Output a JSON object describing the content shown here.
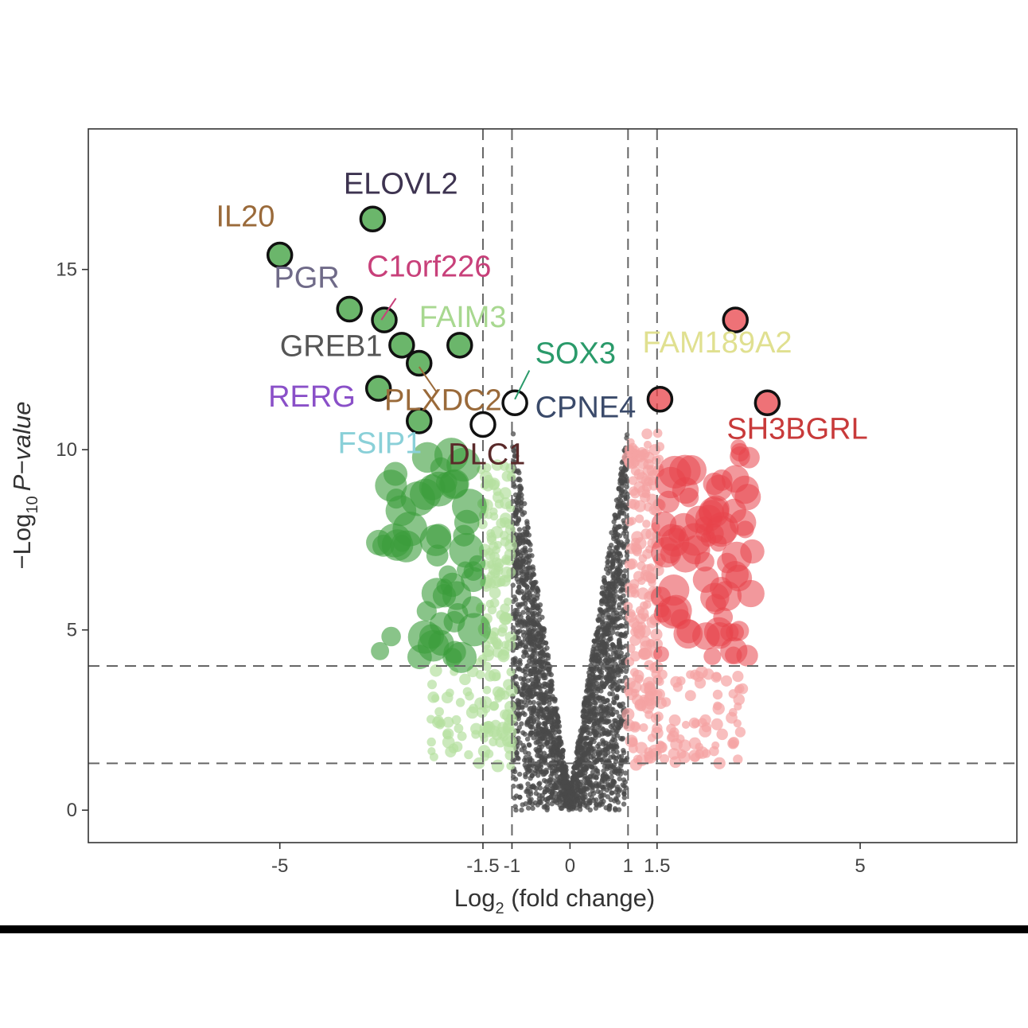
{
  "chart_data": {
    "type": "scatter",
    "title": "",
    "xlabel_prefix": "Log",
    "xlabel_sub": "2",
    "xlabel_suffix": " (fold change)",
    "ylabel_prefix": "−Log",
    "ylabel_sub": "10",
    "ylabel_italic": "P−value",
    "xlim": [
      -8.3,
      7.7
    ],
    "ylim": [
      -0.9,
      18.9
    ],
    "x_ticks": [
      {
        "value": -5,
        "label": "-5"
      },
      {
        "value": -1.5,
        "label": "-1.5"
      },
      {
        "value": -1,
        "label": "-1"
      },
      {
        "value": 0,
        "label": "0"
      },
      {
        "value": 1,
        "label": "1"
      },
      {
        "value": 1.5,
        "label": "1.5"
      },
      {
        "value": 5,
        "label": "5"
      }
    ],
    "y_ticks": [
      {
        "value": 0,
        "label": "0"
      },
      {
        "value": 5,
        "label": "5"
      },
      {
        "value": 10,
        "label": "10"
      },
      {
        "value": 15,
        "label": "15"
      }
    ],
    "grid": false,
    "vlines": [
      -1.5,
      -1,
      1,
      1.5
    ],
    "hlines": [
      1.3,
      4
    ],
    "colors": {
      "down_strong": "#3a9d3a",
      "down_weak": "#b5df9f",
      "up_strong": "#e8434a",
      "up_weak": "#f5a3a3",
      "neutral": "#4a4a4a",
      "threshold_line": "#666666",
      "highlight_outline": "#111111"
    },
    "highlighted_genes": [
      {
        "gene": "ELOVL2",
        "x": -3.4,
        "y": 16.4,
        "fill": "#3a9d3a",
        "label_color": "#3d3350",
        "label_x": -3.9,
        "label_y": 17.1
      },
      {
        "gene": "IL20",
        "x": -5.0,
        "y": 15.4,
        "fill": "#3a9d3a",
        "label_color": "#9a6a3a",
        "label_x": -6.1,
        "label_y": 16.2
      },
      {
        "gene": "PGR",
        "x": -3.8,
        "y": 13.9,
        "fill": "#3a9d3a",
        "label_color": "#6f6a88",
        "label_x": -5.1,
        "label_y": 14.5
      },
      {
        "gene": "C1orf226",
        "x": -3.2,
        "y": 13.6,
        "fill": "#3a9d3a",
        "label_color": "#c8407a",
        "label_x": -3.5,
        "label_y": 14.8
      },
      {
        "gene": "FAIM3",
        "x": -1.9,
        "y": 12.9,
        "fill": "#3a9d3a",
        "label_color": "#a8d890",
        "label_x": -2.6,
        "label_y": 13.4
      },
      {
        "gene": "GREB1",
        "x": -2.9,
        "y": 12.9,
        "fill": "#3a9d3a",
        "label_color": "#555555",
        "label_x": -5.0,
        "label_y": 12.6
      },
      {
        "gene": "PLXDC2",
        "x": -2.6,
        "y": 12.4,
        "fill": "#3a9d3a",
        "label_color": "#9a6a3a",
        "label_x": -3.2,
        "label_y": 11.1
      },
      {
        "gene": "RERG",
        "x": -3.3,
        "y": 11.7,
        "fill": "#3a9d3a",
        "label_color": "#8a50c8",
        "label_x": -5.2,
        "label_y": 11.2
      },
      {
        "gene": "FSIP1",
        "x": -2.6,
        "y": 10.8,
        "fill": "#3a9d3a",
        "label_color": "#8ad0d8",
        "label_x": -4.0,
        "label_y": 9.9
      },
      {
        "gene": "DLC1",
        "x": -1.5,
        "y": 10.7,
        "fill": "none",
        "label_color": "#5a2a2a",
        "label_x": -2.1,
        "label_y": 9.6
      },
      {
        "gene": "SOX3",
        "x": -0.95,
        "y": 11.3,
        "fill": "none",
        "label_color": "#2a9a6a",
        "label_x": -0.6,
        "label_y": 12.4
      },
      {
        "gene": "CPNE4",
        "x": 1.55,
        "y": 11.4,
        "fill": "#e8434a",
        "label_color": "#3a4a6a",
        "label_x": -0.6,
        "label_y": 10.9
      },
      {
        "gene": "FAM189A2",
        "x": 2.85,
        "y": 13.6,
        "fill": "#e8434a",
        "label_color": "#e0e090",
        "label_x": 1.25,
        "label_y": 12.7
      },
      {
        "gene": "SH3BGRL",
        "x": 3.4,
        "y": 11.3,
        "fill": "#e8434a",
        "label_color": "#c83a3a",
        "label_x": 2.7,
        "label_y": 10.3
      }
    ],
    "connectors": [
      {
        "gene": "C1orf226",
        "x1": -3.0,
        "y1": 14.2,
        "x2": -3.25,
        "y2": 13.6
      },
      {
        "gene": "PLXDC2",
        "x1": -2.3,
        "y1": 11.6,
        "x2": -2.6,
        "y2": 12.3
      },
      {
        "gene": "SOX3",
        "x1": -0.7,
        "y1": 12.2,
        "x2": -0.95,
        "y2": 11.4
      }
    ]
  }
}
